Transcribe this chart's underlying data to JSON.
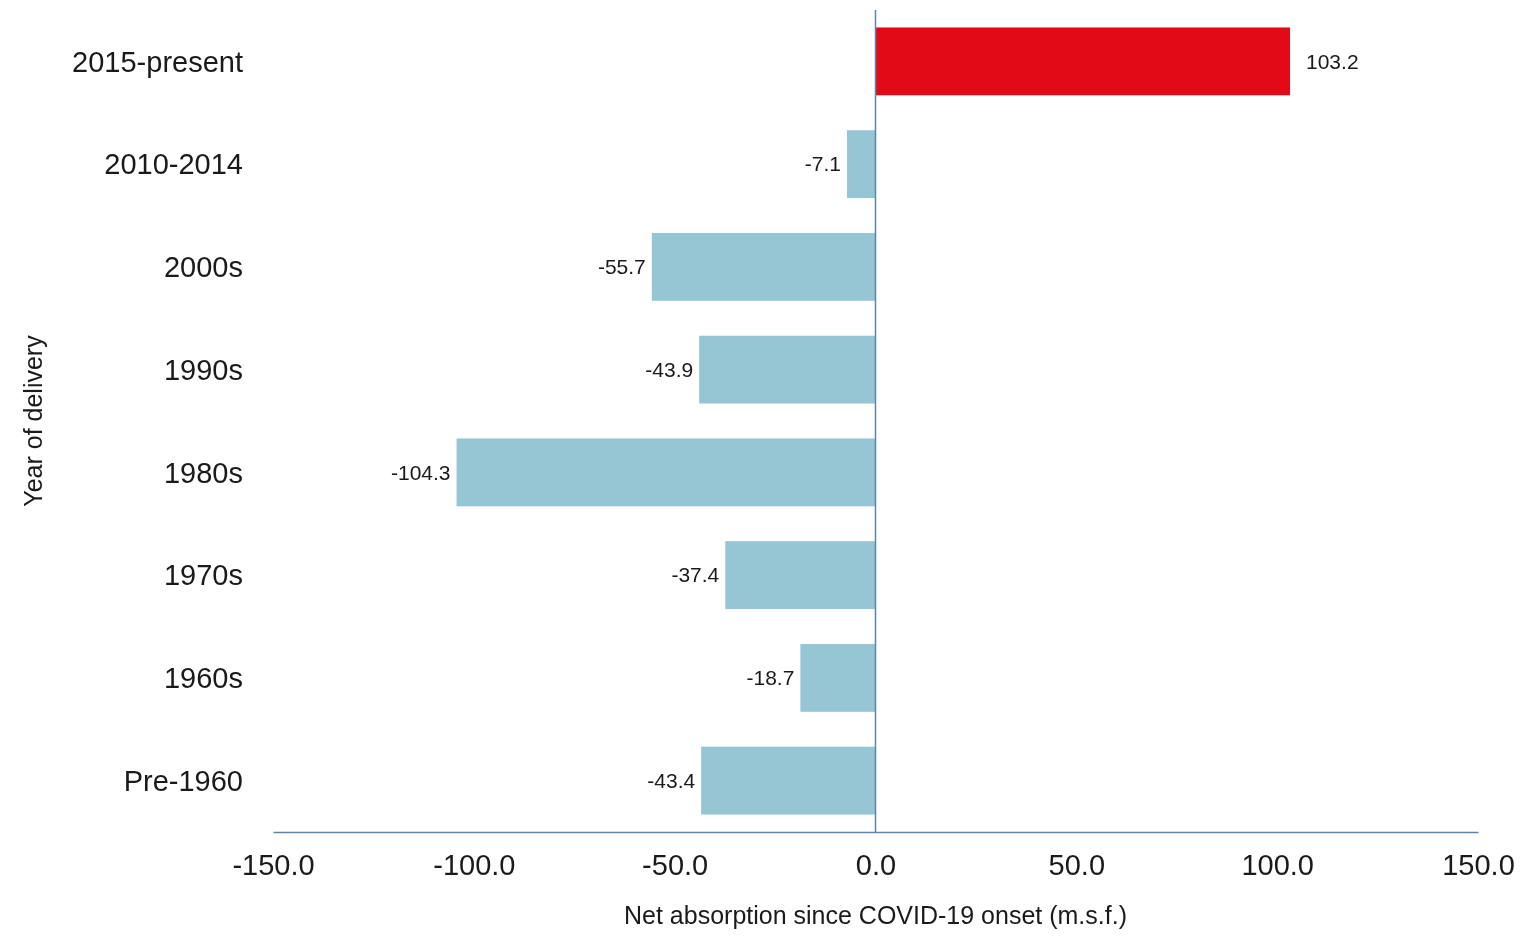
{
  "chart_data": {
    "type": "bar",
    "orientation": "horizontal",
    "xlabel": "Net absorption since COVID-19 onset (m.s.f.)",
    "ylabel": "Year of delivery",
    "categories": [
      "2015-present",
      "2010-2014",
      "2000s",
      "1990s",
      "1980s",
      "1970s",
      "1960s",
      "Pre-1960"
    ],
    "values": [
      103.2,
      -7.1,
      -55.7,
      -43.9,
      -104.3,
      -37.4,
      -18.7,
      -43.4
    ],
    "colors": [
      "#e30a17",
      "#96c5d4",
      "#96c5d4",
      "#96c5d4",
      "#96c5d4",
      "#96c5d4",
      "#96c5d4",
      "#96c5d4"
    ],
    "xlim": [
      -150,
      150
    ],
    "xticks": [
      {
        "value": -150,
        "label": "-150.0"
      },
      {
        "value": -100,
        "label": "-100.0"
      },
      {
        "value": -50,
        "label": "-50.0"
      },
      {
        "value": 0,
        "label": "0.0"
      },
      {
        "value": 50,
        "label": "50.0"
      },
      {
        "value": 100,
        "label": "100.0"
      },
      {
        "value": 150,
        "label": "150.0"
      }
    ],
    "ref_lines": [
      {
        "axis": "x",
        "value": 0,
        "color": "#5d84b0"
      }
    ],
    "data_labels": true,
    "grid": false
  }
}
